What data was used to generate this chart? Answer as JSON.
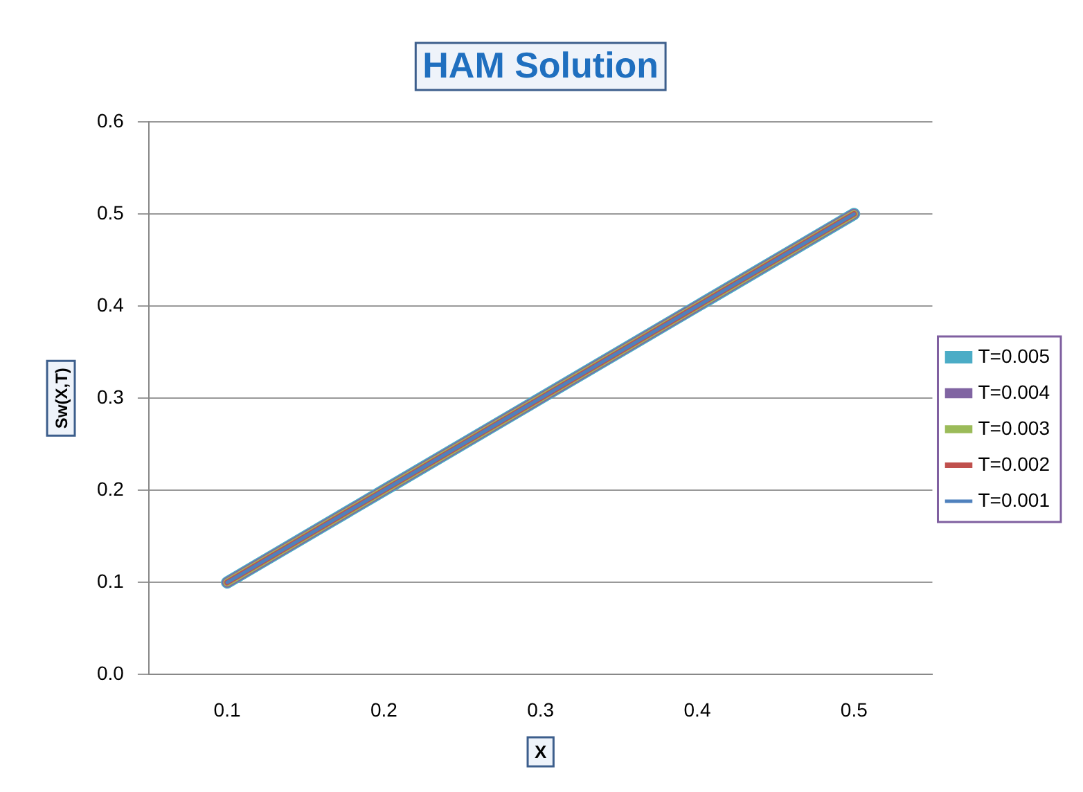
{
  "chart_data": {
    "type": "line",
    "title": "HAM Solution",
    "xlabel": "X",
    "ylabel": "Sw(X,T)",
    "categories": [
      "0.1",
      "0.2",
      "0.3",
      "0.4",
      "0.5"
    ],
    "series": [
      {
        "name": "T=0.005",
        "color": "#4bacc6",
        "values": [
          0.1,
          0.2,
          0.3,
          0.4,
          0.5
        ]
      },
      {
        "name": "T=0.004",
        "color": "#8064a2",
        "values": [
          0.1,
          0.2,
          0.3,
          0.4,
          0.5
        ]
      },
      {
        "name": "T=0.003",
        "color": "#9bbb59",
        "values": [
          0.1,
          0.2,
          0.3,
          0.4,
          0.5
        ]
      },
      {
        "name": "T=0.002",
        "color": "#c0504d",
        "values": [
          0.1,
          0.2,
          0.3,
          0.4,
          0.5
        ]
      },
      {
        "name": "T=0.001",
        "color": "#4f81bd",
        "values": [
          0.1,
          0.2,
          0.3,
          0.4,
          0.5
        ]
      }
    ],
    "ylim": [
      0,
      0.6
    ],
    "yticks": [
      {
        "value": 0,
        "label": "0.0"
      },
      0.1,
      0.2,
      0.3,
      0.4,
      0.5,
      0.6
    ],
    "grid": "y",
    "legend": "right",
    "marker": "none",
    "line_style": "solid"
  }
}
